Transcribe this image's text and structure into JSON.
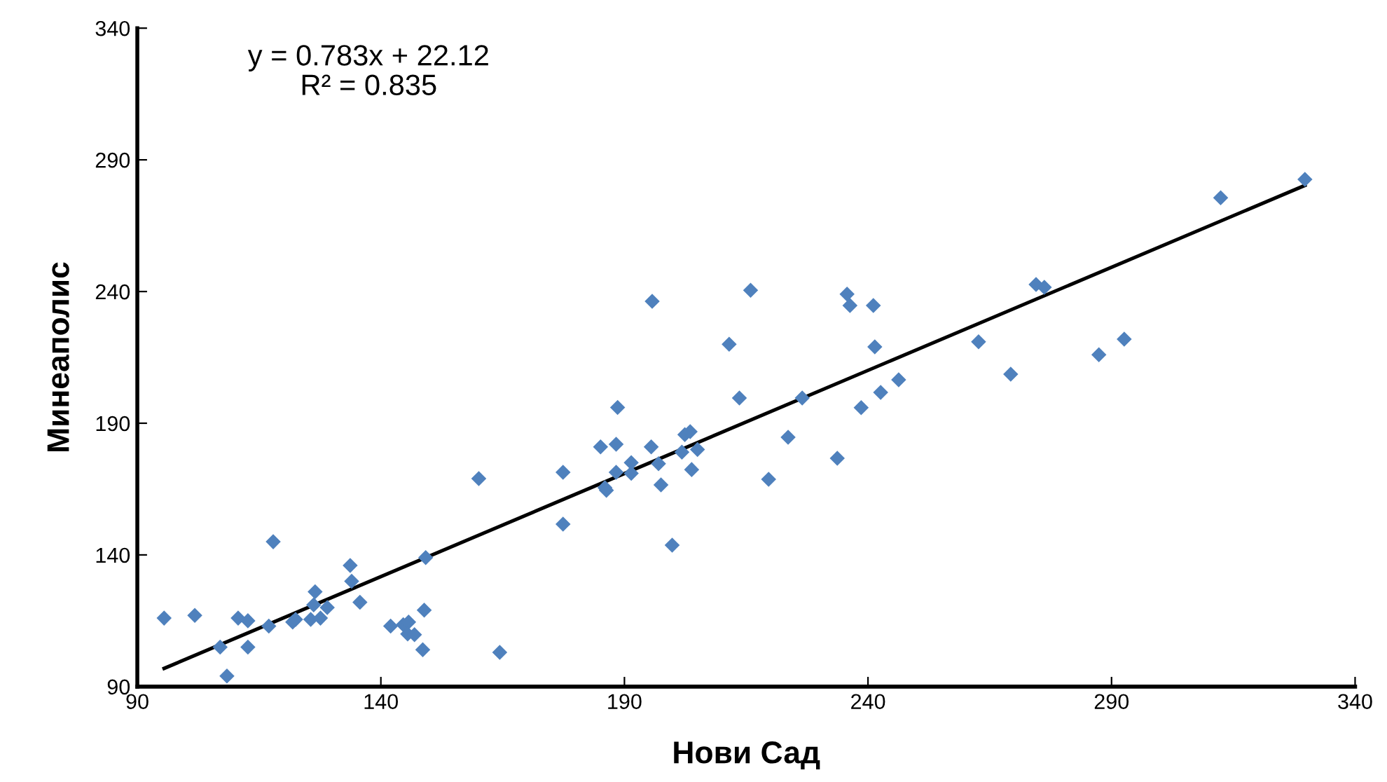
{
  "chart_data": {
    "type": "scatter",
    "xlabel": "Нови Сад",
    "ylabel": "Минеаполис",
    "annotations": [
      "y = 0.783x + 22.12",
      "R² = 0.835"
    ],
    "xlim": [
      90,
      340
    ],
    "xticks": [
      90,
      140,
      190,
      240,
      290,
      340
    ],
    "ylim": [
      90,
      340
    ],
    "yticks": [
      90,
      140,
      190,
      240,
      290,
      340
    ],
    "grid": false,
    "legend": false,
    "series": [
      {
        "color": "#4f81bd",
        "marker": "diamond",
        "x": [
          95.5,
          101.8,
          107,
          108.4,
          110.7,
          112.7,
          112.7,
          117,
          117.9,
          121.9,
          122.5,
          125.6,
          126.2,
          126.5,
          127.6,
          129,
          133.7,
          134,
          135.7,
          142,
          144.6,
          145.7,
          145.5,
          146.9,
          148.6,
          148.9,
          149.2,
          160.1,
          164.4,
          177.4,
          177.4,
          185.1,
          186,
          186.3,
          188.3,
          188.6,
          188.3,
          191.4,
          191.4,
          195.5,
          195.7,
          197,
          197.5,
          199.8,
          201.8,
          202.4,
          203.5,
          203.8,
          205,
          211.5,
          213.6,
          215.9,
          219.6,
          223.6,
          226.5,
          233.7,
          235.7,
          236.3,
          238.6,
          241.1,
          241.4,
          242.6,
          246.3,
          262.7,
          269.3,
          274.5,
          276.2,
          287.4,
          292.6,
          312.4,
          329.7
        ],
        "values": [
          116,
          117,
          105,
          94,
          116,
          115,
          105,
          113,
          145,
          114.5,
          115.5,
          115.5,
          121,
          126,
          116,
          120,
          136,
          130,
          122,
          113,
          113.5,
          114.5,
          110,
          109.7,
          104,
          119,
          139,
          169,
          103,
          171.4,
          151.7,
          181,
          165.5,
          164.5,
          171.4,
          196,
          182,
          175,
          171,
          181,
          236.3,
          174.6,
          166.6,
          143.7,
          179,
          185.7,
          186.8,
          172.4,
          180,
          220,
          199.6,
          240.5,
          168.7,
          184.7,
          199.6,
          176.7,
          239,
          234.7,
          195.9,
          234.7,
          219,
          201.7,
          206.5,
          220.9,
          208.6,
          242.7,
          241.6,
          216,
          221.9,
          275.6,
          282.6
        ]
      },
      {
        "type": "line",
        "color": "#000000",
        "line_style": "solid",
        "x": [
          95.5,
          329.7
        ],
        "values": [
          96.9,
          280.3
        ]
      }
    ]
  }
}
